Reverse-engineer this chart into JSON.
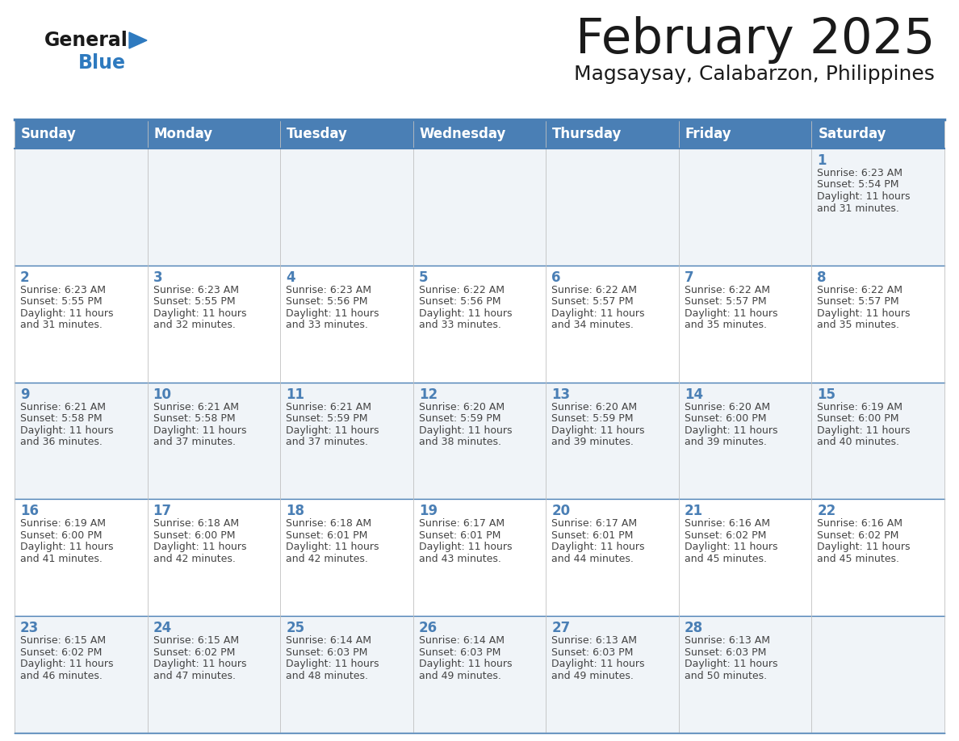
{
  "title": "February 2025",
  "subtitle": "Magsaysay, Calabarzon, Philippines",
  "days_of_week": [
    "Sunday",
    "Monday",
    "Tuesday",
    "Wednesday",
    "Thursday",
    "Friday",
    "Saturday"
  ],
  "header_bg": "#4a7fb5",
  "header_text": "#ffffff",
  "row_bg_light": "#f0f4f8",
  "row_bg_white": "#ffffff",
  "cell_border_color": "#4a7fb5",
  "day_num_color": "#4a7fb5",
  "text_color": "#444444",
  "title_color": "#1a1a1a",
  "subtitle_color": "#1a1a1a",
  "logo_general_color": "#1a1a1a",
  "logo_blue_color": "#2e7abf",
  "logo_triangle_color": "#2e7abf",
  "calendar_data": [
    [
      null,
      null,
      null,
      null,
      null,
      null,
      {
        "day": 1,
        "sunrise": "6:23 AM",
        "sunset": "5:54 PM",
        "daylight": "11 hours and 31 minutes."
      }
    ],
    [
      {
        "day": 2,
        "sunrise": "6:23 AM",
        "sunset": "5:55 PM",
        "daylight": "11 hours and 31 minutes."
      },
      {
        "day": 3,
        "sunrise": "6:23 AM",
        "sunset": "5:55 PM",
        "daylight": "11 hours and 32 minutes."
      },
      {
        "day": 4,
        "sunrise": "6:23 AM",
        "sunset": "5:56 PM",
        "daylight": "11 hours and 33 minutes."
      },
      {
        "day": 5,
        "sunrise": "6:22 AM",
        "sunset": "5:56 PM",
        "daylight": "11 hours and 33 minutes."
      },
      {
        "day": 6,
        "sunrise": "6:22 AM",
        "sunset": "5:57 PM",
        "daylight": "11 hours and 34 minutes."
      },
      {
        "day": 7,
        "sunrise": "6:22 AM",
        "sunset": "5:57 PM",
        "daylight": "11 hours and 35 minutes."
      },
      {
        "day": 8,
        "sunrise": "6:22 AM",
        "sunset": "5:57 PM",
        "daylight": "11 hours and 35 minutes."
      }
    ],
    [
      {
        "day": 9,
        "sunrise": "6:21 AM",
        "sunset": "5:58 PM",
        "daylight": "11 hours and 36 minutes."
      },
      {
        "day": 10,
        "sunrise": "6:21 AM",
        "sunset": "5:58 PM",
        "daylight": "11 hours and 37 minutes."
      },
      {
        "day": 11,
        "sunrise": "6:21 AM",
        "sunset": "5:59 PM",
        "daylight": "11 hours and 37 minutes."
      },
      {
        "day": 12,
        "sunrise": "6:20 AM",
        "sunset": "5:59 PM",
        "daylight": "11 hours and 38 minutes."
      },
      {
        "day": 13,
        "sunrise": "6:20 AM",
        "sunset": "5:59 PM",
        "daylight": "11 hours and 39 minutes."
      },
      {
        "day": 14,
        "sunrise": "6:20 AM",
        "sunset": "6:00 PM",
        "daylight": "11 hours and 39 minutes."
      },
      {
        "day": 15,
        "sunrise": "6:19 AM",
        "sunset": "6:00 PM",
        "daylight": "11 hours and 40 minutes."
      }
    ],
    [
      {
        "day": 16,
        "sunrise": "6:19 AM",
        "sunset": "6:00 PM",
        "daylight": "11 hours and 41 minutes."
      },
      {
        "day": 17,
        "sunrise": "6:18 AM",
        "sunset": "6:00 PM",
        "daylight": "11 hours and 42 minutes."
      },
      {
        "day": 18,
        "sunrise": "6:18 AM",
        "sunset": "6:01 PM",
        "daylight": "11 hours and 42 minutes."
      },
      {
        "day": 19,
        "sunrise": "6:17 AM",
        "sunset": "6:01 PM",
        "daylight": "11 hours and 43 minutes."
      },
      {
        "day": 20,
        "sunrise": "6:17 AM",
        "sunset": "6:01 PM",
        "daylight": "11 hours and 44 minutes."
      },
      {
        "day": 21,
        "sunrise": "6:16 AM",
        "sunset": "6:02 PM",
        "daylight": "11 hours and 45 minutes."
      },
      {
        "day": 22,
        "sunrise": "6:16 AM",
        "sunset": "6:02 PM",
        "daylight": "11 hours and 45 minutes."
      }
    ],
    [
      {
        "day": 23,
        "sunrise": "6:15 AM",
        "sunset": "6:02 PM",
        "daylight": "11 hours and 46 minutes."
      },
      {
        "day": 24,
        "sunrise": "6:15 AM",
        "sunset": "6:02 PM",
        "daylight": "11 hours and 47 minutes."
      },
      {
        "day": 25,
        "sunrise": "6:14 AM",
        "sunset": "6:03 PM",
        "daylight": "11 hours and 48 minutes."
      },
      {
        "day": 26,
        "sunrise": "6:14 AM",
        "sunset": "6:03 PM",
        "daylight": "11 hours and 49 minutes."
      },
      {
        "day": 27,
        "sunrise": "6:13 AM",
        "sunset": "6:03 PM",
        "daylight": "11 hours and 49 minutes."
      },
      {
        "day": 28,
        "sunrise": "6:13 AM",
        "sunset": "6:03 PM",
        "daylight": "11 hours and 50 minutes."
      },
      null
    ]
  ]
}
